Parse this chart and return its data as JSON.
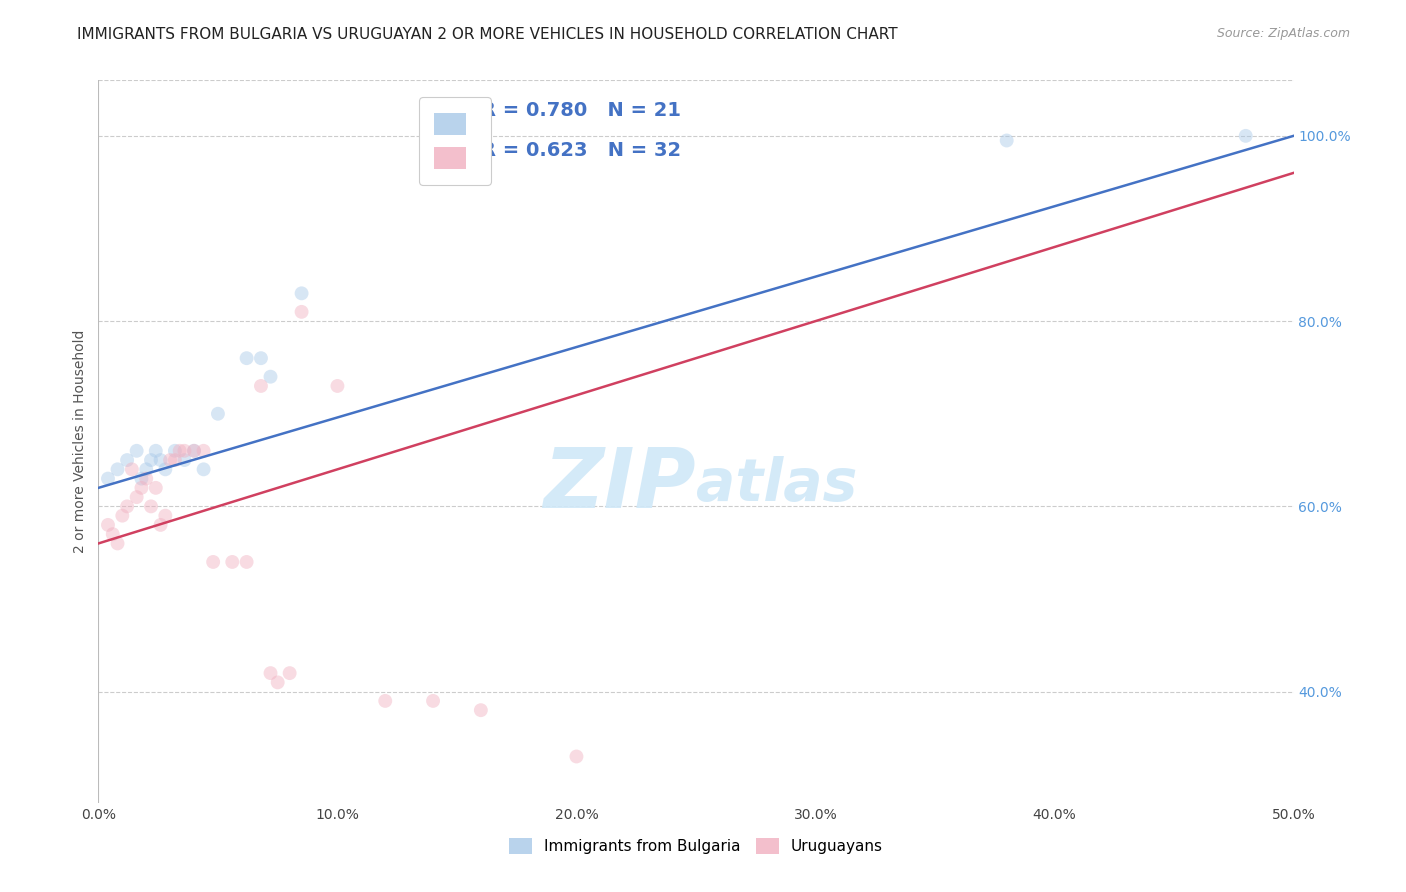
{
  "title": "IMMIGRANTS FROM BULGARIA VS URUGUAYAN 2 OR MORE VEHICLES IN HOUSEHOLD CORRELATION CHART",
  "source": "Source: ZipAtlas.com",
  "ylabel": "2 or more Vehicles in Household",
  "x_min": 0.0,
  "x_max": 0.5,
  "y_min": 0.28,
  "y_max": 1.06,
  "x_tick_labels": [
    "0.0%",
    "",
    "10.0%",
    "",
    "20.0%",
    "",
    "30.0%",
    "",
    "40.0%",
    "",
    "50.0%"
  ],
  "x_tick_values": [
    0.0,
    0.05,
    0.1,
    0.15,
    0.2,
    0.25,
    0.3,
    0.35,
    0.4,
    0.45,
    0.5
  ],
  "y_tick_labels": [
    "40.0%",
    "60.0%",
    "80.0%",
    "100.0%"
  ],
  "y_tick_values": [
    0.4,
    0.6,
    0.8,
    1.0
  ],
  "bg_color": "#ffffff",
  "grid_color": "#cccccc",
  "blue_color": "#a8c8e8",
  "pink_color": "#f0b0c0",
  "blue_line_color": "#4472c4",
  "pink_line_color": "#d04060",
  "legend_text_color": "#4472c4",
  "legend_R1": "R = 0.780",
  "legend_N1": "N = 21",
  "legend_R2": "R = 0.623",
  "legend_N2": "N = 32",
  "title_color": "#222222",
  "right_tick_color": "#5599dd",
  "watermark_color": "#d0e8f8",
  "blue_scatter_x": [
    0.004,
    0.008,
    0.012,
    0.016,
    0.018,
    0.02,
    0.022,
    0.024,
    0.026,
    0.028,
    0.032,
    0.036,
    0.04,
    0.044,
    0.05,
    0.062,
    0.068,
    0.072,
    0.085,
    0.38,
    0.48
  ],
  "blue_scatter_y": [
    0.63,
    0.64,
    0.65,
    0.66,
    0.63,
    0.64,
    0.65,
    0.66,
    0.65,
    0.64,
    0.66,
    0.65,
    0.66,
    0.64,
    0.7,
    0.76,
    0.76,
    0.74,
    0.83,
    0.995,
    1.0
  ],
  "pink_scatter_x": [
    0.004,
    0.006,
    0.008,
    0.01,
    0.012,
    0.014,
    0.016,
    0.018,
    0.02,
    0.022,
    0.024,
    0.026,
    0.028,
    0.03,
    0.032,
    0.034,
    0.036,
    0.04,
    0.044,
    0.048,
    0.056,
    0.062,
    0.068,
    0.072,
    0.075,
    0.08,
    0.085,
    0.1,
    0.12,
    0.14,
    0.16,
    0.2
  ],
  "pink_scatter_y": [
    0.58,
    0.57,
    0.56,
    0.59,
    0.6,
    0.64,
    0.61,
    0.62,
    0.63,
    0.6,
    0.62,
    0.58,
    0.59,
    0.65,
    0.65,
    0.66,
    0.66,
    0.66,
    0.66,
    0.54,
    0.54,
    0.54,
    0.73,
    0.42,
    0.41,
    0.42,
    0.81,
    0.73,
    0.39,
    0.39,
    0.38,
    0.33
  ],
  "blue_line_x0": 0.0,
  "blue_line_x1": 0.5,
  "blue_line_y0": 0.62,
  "blue_line_y1": 1.0,
  "pink_line_x0": 0.0,
  "pink_line_x1": 0.5,
  "pink_line_y0": 0.56,
  "pink_line_y1": 0.96,
  "marker_size": 100,
  "scatter_alpha": 0.45
}
